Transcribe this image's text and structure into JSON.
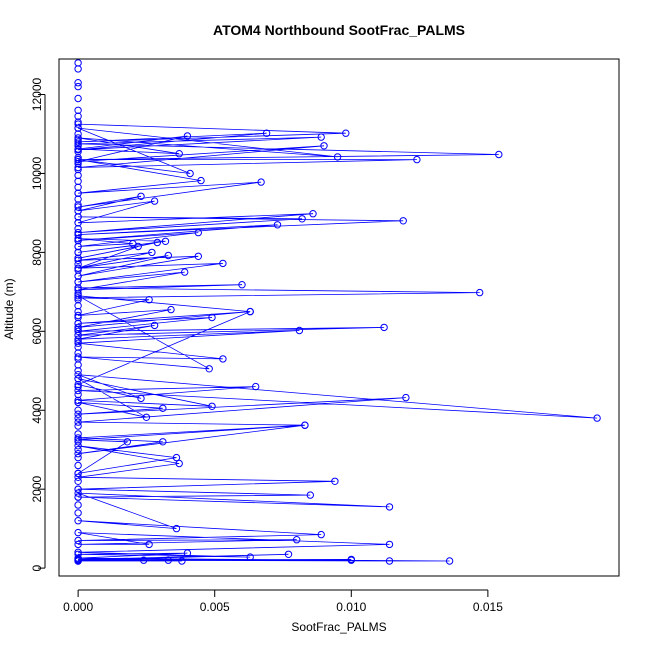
{
  "chart_data": {
    "type": "scatter",
    "title": "ATOM4 Northbound SootFrac_PALMS",
    "xlabel": "SootFrac_PALMS",
    "ylabel": "Altitude (m)",
    "xlim": [
      -0.0007,
      0.0198
    ],
    "ylim": [
      -200,
      12900
    ],
    "x_ticks": [
      0.0,
      0.005,
      0.01,
      0.015
    ],
    "x_tick_labels": [
      "0.000",
      "0.005",
      "0.010",
      "0.015"
    ],
    "y_ticks": [
      0,
      2000,
      4000,
      6000,
      8000,
      10000,
      12000
    ],
    "y_tick_labels": [
      "0",
      "2000",
      "4000",
      "6000",
      "8000",
      "10000",
      "12000"
    ],
    "grid": false,
    "legend": "none",
    "series": [
      {
        "color": "#0000ff",
        "marker": "open-circle",
        "line": true,
        "x": [
          0,
          0.0098,
          0,
          0.0069,
          0,
          0.0089,
          0,
          0.0154,
          0,
          0.0124,
          0,
          0.009,
          0,
          0.004,
          0,
          0.0037,
          0,
          0.0095,
          0,
          0.0041,
          0,
          0.0045,
          0,
          0.0067,
          0,
          0.0023,
          0,
          0.0028,
          0,
          0.0086,
          0,
          0.0082,
          0,
          0.0119,
          0,
          0.0073,
          0,
          0.0044,
          0,
          0.002,
          0,
          0.0032,
          0,
          0.0029,
          0,
          0.0022,
          0,
          0.0027,
          0,
          0.0044,
          0,
          0.0033,
          0,
          0.0053,
          0,
          0.0039,
          0,
          0.006,
          0,
          0.0147,
          0,
          0.0026,
          0,
          0.0034,
          0,
          0.0063,
          0,
          0.0049,
          0,
          0.0112,
          0,
          0.0028,
          0,
          0.0081,
          0,
          0.0053,
          0,
          0.0048,
          0,
          0.0063,
          0,
          0.0023,
          0,
          0.019,
          0,
          0.0065,
          0,
          0.0049,
          0,
          0.0025,
          0,
          0.0031,
          0,
          0.012,
          0,
          0.0083,
          0,
          0.0031,
          0,
          0.0083,
          0,
          0.0018,
          0,
          0.0036,
          0,
          0.0037,
          0,
          0.0094,
          0,
          0.0085,
          0,
          0.0114,
          0,
          0.0036,
          0,
          0.0089,
          0,
          0.008,
          0,
          0.0026,
          0,
          0.0114,
          0,
          0.0063,
          0,
          0.004,
          0,
          0.0136,
          0,
          0.0114,
          0,
          0.0077,
          0,
          0.01,
          0,
          0.0033,
          0,
          0.0024,
          0,
          0.0038,
          0,
          0.01,
          0
        ],
        "y": [
          11250,
          11020,
          10800,
          11020,
          10600,
          10920,
          10750,
          10480,
          10350,
          10350,
          10150,
          10700,
          10300,
          10950,
          10620,
          10500,
          10900,
          10420,
          11150,
          10000,
          10350,
          9820,
          9500,
          9780,
          9150,
          9420,
          9050,
          9300,
          8750,
          8980,
          8500,
          8850,
          8900,
          8800,
          8450,
          8700,
          8300,
          8500,
          8150,
          8220,
          8350,
          8280,
          8000,
          8250,
          7850,
          8150,
          7600,
          8000,
          7800,
          7900,
          7400,
          7920,
          7600,
          7720,
          7250,
          7500,
          7050,
          7180,
          7100,
          6980,
          6850,
          6800,
          6400,
          6550,
          6100,
          6500,
          6200,
          6350,
          6000,
          6100,
          5900,
          6150,
          5800,
          6020,
          5700,
          5300,
          5350,
          5050,
          6900,
          6500,
          4650,
          4300,
          4900,
          3800,
          4500,
          4600,
          4250,
          4100,
          4800,
          3820,
          4200,
          4050,
          3900,
          4320,
          3700,
          3620,
          2900,
          3200,
          3300,
          3620,
          3250,
          3200,
          2400,
          2800,
          3100,
          2650,
          2300,
          2200,
          2000,
          1850,
          1800,
          1550,
          1900,
          1000,
          1200,
          850,
          700,
          720,
          600,
          600,
          900,
          600,
          400,
          280,
          350,
          380,
          250,
          180,
          200,
          180,
          200,
          350,
          220,
          200,
          250,
          200,
          180,
          200,
          180,
          180,
          200,
          220,
          200
        ]
      },
      {
        "color": "#0000ff",
        "marker": "open-circle",
        "line": false,
        "x": [
          0,
          0,
          0,
          0,
          0,
          0,
          0,
          0,
          0,
          0,
          0,
          0,
          0,
          0,
          0,
          0,
          0,
          0,
          0,
          0,
          0,
          0,
          0,
          0,
          0,
          0,
          0,
          0,
          0,
          0,
          0,
          0,
          0,
          0,
          0,
          0,
          0,
          0,
          0,
          0,
          0,
          0,
          0,
          0,
          0,
          0,
          0,
          0,
          0,
          0,
          0,
          0,
          0,
          0,
          0,
          0,
          0,
          0,
          0,
          0,
          0,
          0,
          0,
          0,
          0,
          0,
          0,
          0
        ],
        "y": [
          12800,
          12650,
          12300,
          12200,
          11900,
          11600,
          11450,
          11300,
          11150,
          11000,
          10850,
          10700,
          10550,
          10400,
          10250,
          10100,
          9950,
          9800,
          9650,
          9500,
          9350,
          9200,
          9050,
          8900,
          8750,
          8600,
          8450,
          8300,
          8150,
          8000,
          7850,
          7700,
          7550,
          7400,
          7250,
          7100,
          6950,
          6800,
          6650,
          6500,
          6350,
          6200,
          6050,
          5900,
          5750,
          5600,
          5450,
          5300,
          5150,
          5000,
          4800,
          4600,
          4400,
          4200,
          4000,
          3800,
          3600,
          3400,
          3200,
          3000,
          2800,
          2600,
          2400,
          2200,
          2000,
          1800,
          1600,
          1400
        ]
      }
    ]
  }
}
